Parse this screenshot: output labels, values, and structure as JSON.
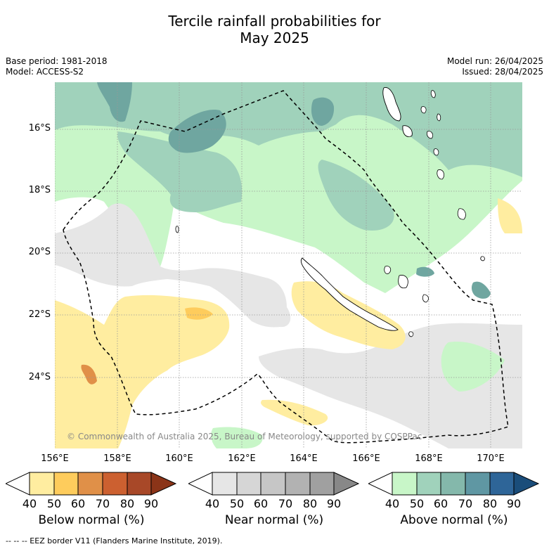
{
  "title_line1": "Tercile rainfall probabilities for",
  "title_line2": "May 2025",
  "meta": {
    "base_period": "Base period: 1981-2018",
    "model": "Model: ACCESS-S2",
    "model_run": "Model run: 26/04/2025",
    "issued": "Issued: 28/04/2025"
  },
  "map": {
    "lat_labels": [
      "16°S",
      "18°S",
      "20°S",
      "22°S",
      "24°S"
    ],
    "lon_labels": [
      "156°E",
      "158°E",
      "160°E",
      "162°E",
      "164°E",
      "166°E",
      "168°E",
      "170°E"
    ],
    "copyright": "© Commonwealth of Australia 2025, Bureau of Meteorology, supported by COSPPac",
    "border_color": "#000000",
    "land_outline_color": "#000000"
  },
  "legends": [
    {
      "title": "Below normal (%)",
      "ticks": [
        "40",
        "50",
        "60",
        "70",
        "80",
        "90"
      ],
      "colors": [
        "#ffffff",
        "#ffeda0",
        "#fecc5c",
        "#e09048",
        "#cc6030",
        "#a84828",
        "#8b3418"
      ]
    },
    {
      "title": "Near normal (%)",
      "ticks": [
        "40",
        "50",
        "60",
        "70",
        "80",
        "90"
      ],
      "colors": [
        "#ffffff",
        "#e6e6e6",
        "#d6d6d6",
        "#c6c6c6",
        "#b2b2b2",
        "#a0a0a0",
        "#888888"
      ]
    },
    {
      "title": "Above normal (%)",
      "ticks": [
        "40",
        "50",
        "60",
        "70",
        "80",
        "90"
      ],
      "colors": [
        "#ffffff",
        "#c8f6c8",
        "#a0d2bb",
        "#84b8ab",
        "#5f97a3",
        "#2e6598",
        "#1a4d7a"
      ]
    }
  ],
  "footer": "--  --  -- EEZ border V11 (Flanders Marine Institute, 2019)."
}
